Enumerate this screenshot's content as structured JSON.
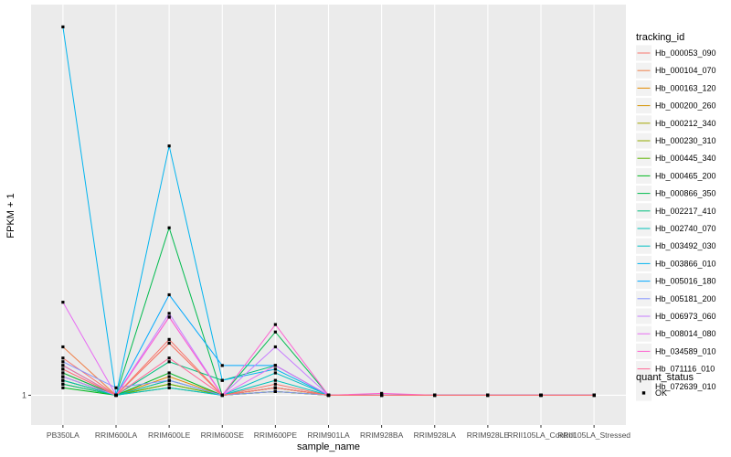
{
  "chart_data": {
    "type": "line",
    "xlabel": "sample_name",
    "ylabel": "FPKM + 1",
    "ylim": [
      0.92,
      2.05
    ],
    "y_ticks": [
      1
    ],
    "y_tick_labels": [
      "1"
    ],
    "grid": true,
    "legend_position": "right",
    "categories": [
      "PB350LA",
      "RRIM600LA",
      "RRIM600LE",
      "RRIM600SE",
      "RRIM600PE",
      "RRIM901LA",
      "RRIM928BA",
      "RRIM928LA",
      "RRIM928LE",
      "RRII105LA_Control",
      "RRII105LA_Stressed"
    ],
    "series": [
      {
        "name": "Hb_000053_090",
        "color": "#F8766D",
        "values": [
          1.1,
          1.0,
          1.15,
          1.0,
          1.03,
          1.0,
          1.0,
          1.0,
          1.0,
          1.0,
          1.0
        ]
      },
      {
        "name": "Hb_000104_070",
        "color": "#EF7F49",
        "values": [
          1.13,
          1.0,
          1.14,
          1.0,
          1.02,
          1.0,
          1.0,
          1.0,
          1.0,
          1.0,
          1.0
        ]
      },
      {
        "name": "Hb_000163_120",
        "color": "#E38900",
        "values": [
          1.06,
          1.0,
          1.05,
          1.0,
          1.01,
          1.0,
          1.0,
          1.0,
          1.0,
          1.0,
          1.0
        ]
      },
      {
        "name": "Hb_000200_260",
        "color": "#D39200",
        "values": [
          1.05,
          1.0,
          1.04,
          1.0,
          1.02,
          1.0,
          1.0,
          1.0,
          1.0,
          1.0,
          1.0
        ]
      },
      {
        "name": "Hb_000212_340",
        "color": "#A3A500",
        "values": [
          1.04,
          1.0,
          1.03,
          1.0,
          1.01,
          1.0,
          1.0,
          1.0,
          1.0,
          1.0,
          1.0
        ]
      },
      {
        "name": "Hb_000230_310",
        "color": "#93AA00",
        "values": [
          1.03,
          1.0,
          1.02,
          1.0,
          1.01,
          1.0,
          1.0,
          1.0,
          1.0,
          1.0,
          1.0
        ]
      },
      {
        "name": "Hb_000445_340",
        "color": "#5EB300",
        "values": [
          1.04,
          1.0,
          1.03,
          1.0,
          1.01,
          1.0,
          1.0,
          1.0,
          1.0,
          1.0,
          1.0
        ]
      },
      {
        "name": "Hb_000465_200",
        "color": "#00B81F",
        "values": [
          1.02,
          1.0,
          1.06,
          1.0,
          1.02,
          1.0,
          1.0,
          1.0,
          1.0,
          1.0,
          1.0
        ]
      },
      {
        "name": "Hb_000866_350",
        "color": "#00BB4E",
        "values": [
          1.06,
          1.0,
          1.45,
          1.0,
          1.17,
          1.0,
          1.0,
          1.0,
          1.0,
          1.0,
          1.0
        ]
      },
      {
        "name": "Hb_002217_410",
        "color": "#00BF7D",
        "values": [
          1.03,
          1.0,
          1.09,
          1.04,
          1.08,
          1.0,
          1.0,
          1.0,
          1.0,
          1.0,
          1.0
        ]
      },
      {
        "name": "Hb_002740_070",
        "color": "#00C0B8",
        "values": [
          1.04,
          1.0,
          1.04,
          1.0,
          1.04,
          1.0,
          1.0,
          1.0,
          1.0,
          1.0,
          1.0
        ]
      },
      {
        "name": "Hb_003492_030",
        "color": "#00BFC4",
        "values": [
          1.05,
          1.0,
          1.02,
          1.0,
          1.06,
          1.0,
          1.0,
          1.0,
          1.0,
          1.0,
          1.0
        ]
      },
      {
        "name": "Hb_003866_010",
        "color": "#00B4EF",
        "values": [
          1.99,
          1.0,
          1.67,
          1.04,
          1.07,
          1.0,
          1.0,
          1.0,
          1.0,
          1.0,
          1.0
        ]
      },
      {
        "name": "Hb_005016_180",
        "color": "#00A9FF",
        "values": [
          1.08,
          1.0,
          1.27,
          1.08,
          1.08,
          1.0,
          1.0,
          1.0,
          1.0,
          1.0,
          1.0
        ]
      },
      {
        "name": "Hb_005181_200",
        "color": "#8494FF",
        "values": [
          1.09,
          1.02,
          1.04,
          1.0,
          1.01,
          1.0,
          1.0,
          1.0,
          1.0,
          1.0,
          1.0
        ]
      },
      {
        "name": "Hb_006973_060",
        "color": "#C77CFF",
        "values": [
          1.05,
          1.0,
          1.22,
          1.0,
          1.13,
          1.0,
          1.0,
          1.0,
          1.0,
          1.0,
          1.0
        ]
      },
      {
        "name": "Hb_008014_080",
        "color": "#E76BF3",
        "values": [
          1.25,
          1.0,
          1.21,
          1.0,
          1.08,
          1.0,
          1.0,
          1.0,
          1.0,
          1.0,
          1.0
        ]
      },
      {
        "name": "Hb_034589_010",
        "color": "#FD61D1",
        "values": [
          1.07,
          1.0,
          1.21,
          1.0,
          1.19,
          1.0,
          1.005,
          1.0,
          1.0,
          1.0,
          1.0
        ]
      },
      {
        "name": "Hb_071116_010",
        "color": "#FF6A98",
        "values": [
          1.08,
          1.0,
          1.1,
          1.0,
          1.02,
          1.0,
          1.0,
          1.0,
          1.0,
          1.0,
          1.0
        ]
      },
      {
        "name": "Hb_072639_010",
        "color": "#F8766D",
        "values": [
          1.07,
          1.0,
          1.14,
          1.0,
          1.02,
          1.0,
          1.0,
          1.0,
          1.0,
          1.0,
          1.0
        ]
      }
    ],
    "legend_title": "tracking_id",
    "shape_legend": {
      "title": "quant_status",
      "items": [
        "OK"
      ]
    }
  }
}
